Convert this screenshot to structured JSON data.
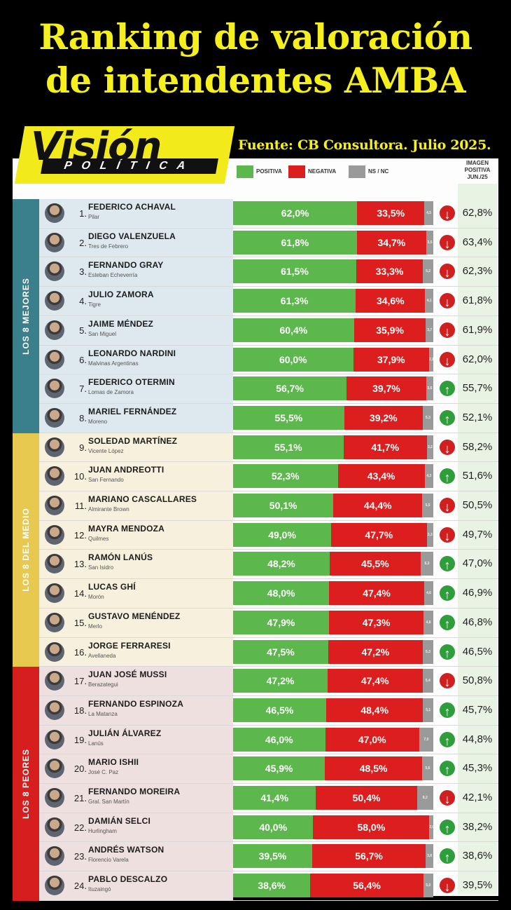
{
  "header": {
    "title_line1": "Ranking de valoración",
    "title_line2": "de intendentes AMBA",
    "logo_word": "Visión",
    "logo_sub": "POLÍTICA",
    "source": "Fuente: CB Consultora. Julio 2025."
  },
  "colors": {
    "positive": "#5cb84c",
    "negative": "#dc1e1e",
    "ns_nc": "#9a9a9a",
    "title_yellow": "#f5ef1d",
    "group_best": "#3a7f8c",
    "group_middle": "#e8c94f",
    "group_worst": "#d71e1e"
  },
  "chart_data": {
    "type": "bar",
    "legend": [
      "POSITIVA",
      "NEGATIVA",
      "NS / NC"
    ],
    "image_header": "IMAGEN POSITIVA JUN./25",
    "groups": [
      {
        "label": "LOS 8 MEJORES",
        "from": 1,
        "to": 8
      },
      {
        "label": "LOS 8 DEL MEDIO",
        "from": 9,
        "to": 16
      },
      {
        "label": "LOS 8 PEORES",
        "from": 17,
        "to": 24
      }
    ],
    "rows": [
      {
        "rank": "1.",
        "name": "FEDERICO ACHAVAL",
        "municipality": "Pilar",
        "positive": 62.0,
        "positive_label": "62,0%",
        "negative": 33.5,
        "negative_label": "33,5%",
        "ns_nc": 4.5,
        "ns_label": "4,5",
        "trend": "down",
        "image_jun": "62,8%"
      },
      {
        "rank": "2.",
        "name": "DIEGO VALENZUELA",
        "municipality": "Tres de Febrero",
        "positive": 61.8,
        "positive_label": "61,8%",
        "negative": 34.7,
        "negative_label": "34,7%",
        "ns_nc": 3.5,
        "ns_label": "3,5",
        "trend": "down",
        "image_jun": "63,4%"
      },
      {
        "rank": "3.",
        "name": "FERNANDO GRAY",
        "municipality": "Esteban Echeverría",
        "positive": 61.5,
        "positive_label": "61,5%",
        "negative": 33.3,
        "negative_label": "33,3%",
        "ns_nc": 5.2,
        "ns_label": "5,2",
        "trend": "down",
        "image_jun": "62,3%"
      },
      {
        "rank": "4.",
        "name": "JULIO ZAMORA",
        "municipality": "Tigre",
        "positive": 61.3,
        "positive_label": "61,3%",
        "negative": 34.6,
        "negative_label": "34,6%",
        "ns_nc": 4.1,
        "ns_label": "4,1",
        "trend": "down",
        "image_jun": "61,8%"
      },
      {
        "rank": "5.",
        "name": "JAIME MÉNDEZ",
        "municipality": "San Miguel",
        "positive": 60.4,
        "positive_label": "60,4%",
        "negative": 35.9,
        "negative_label": "35,9%",
        "ns_nc": 3.7,
        "ns_label": "3,7",
        "trend": "down",
        "image_jun": "61,9%"
      },
      {
        "rank": "6.",
        "name": "LEONARDO NARDINI",
        "municipality": "Malvinas Argentinas",
        "positive": 60.0,
        "positive_label": "60,0%",
        "negative": 37.9,
        "negative_label": "37,9%",
        "ns_nc": 2.1,
        "ns_label": "2,1",
        "trend": "down",
        "image_jun": "62,0%"
      },
      {
        "rank": "7.",
        "name": "FEDERICO OTERMIN",
        "municipality": "Lomas de Zamora",
        "positive": 56.7,
        "positive_label": "56,7%",
        "negative": 39.7,
        "negative_label": "39,7%",
        "ns_nc": 3.6,
        "ns_label": "3,6",
        "trend": "up",
        "image_jun": "55,7%"
      },
      {
        "rank": "8.",
        "name": "MARIEL FERNÁNDEZ",
        "municipality": "Moreno",
        "positive": 55.5,
        "positive_label": "55,5%",
        "negative": 39.2,
        "negative_label": "39,2%",
        "ns_nc": 5.3,
        "ns_label": "5,3",
        "trend": "up",
        "image_jun": "52,1%"
      },
      {
        "rank": "9.",
        "name": "SOLEDAD MARTÍNEZ",
        "municipality": "Vicente López",
        "positive": 55.1,
        "positive_label": "55,1%",
        "negative": 41.7,
        "negative_label": "41,7%",
        "ns_nc": 3.2,
        "ns_label": "3,2",
        "trend": "down",
        "image_jun": "58,2%"
      },
      {
        "rank": "10.",
        "name": "JUAN ANDREOTTI",
        "municipality": "San Fernando",
        "positive": 52.3,
        "positive_label": "52,3%",
        "negative": 43.4,
        "negative_label": "43,4%",
        "ns_nc": 4.3,
        "ns_label": "4,3",
        "trend": "up",
        "image_jun": "51,6%"
      },
      {
        "rank": "11.",
        "name": "MARIANO CASCALLARES",
        "municipality": "Almirante Brown",
        "positive": 50.1,
        "positive_label": "50,1%",
        "negative": 44.4,
        "negative_label": "44,4%",
        "ns_nc": 5.5,
        "ns_label": "5,5",
        "trend": "down",
        "image_jun": "50,5%"
      },
      {
        "rank": "12.",
        "name": "MAYRA MENDOZA",
        "municipality": "Quilmes",
        "positive": 49.0,
        "positive_label": "49,0%",
        "negative": 47.7,
        "negative_label": "47,7%",
        "ns_nc": 3.3,
        "ns_label": "3,3",
        "trend": "down",
        "image_jun": "49,7%"
      },
      {
        "rank": "13.",
        "name": "RAMÓN LANÚS",
        "municipality": "San Isidro",
        "positive": 48.2,
        "positive_label": "48,2%",
        "negative": 45.5,
        "negative_label": "45,5%",
        "ns_nc": 6.3,
        "ns_label": "6,3",
        "trend": "up",
        "image_jun": "47,0%"
      },
      {
        "rank": "14.",
        "name": "LUCAS GHÍ",
        "municipality": "Morón",
        "positive": 48.0,
        "positive_label": "48,0%",
        "negative": 47.4,
        "negative_label": "47,4%",
        "ns_nc": 4.6,
        "ns_label": "4,6",
        "trend": "up",
        "image_jun": "46,9%"
      },
      {
        "rank": "15.",
        "name": "GUSTAVO MENÉNDEZ",
        "municipality": "Merlo",
        "positive": 47.9,
        "positive_label": "47,9%",
        "negative": 47.3,
        "negative_label": "47,3%",
        "ns_nc": 4.8,
        "ns_label": "4,8",
        "trend": "up",
        "image_jun": "46,8%"
      },
      {
        "rank": "16.",
        "name": "JORGE FERRARESI",
        "municipality": "Avellaneda",
        "positive": 47.5,
        "positive_label": "47,5%",
        "negative": 47.2,
        "negative_label": "47,2%",
        "ns_nc": 5.3,
        "ns_label": "5,3",
        "trend": "up",
        "image_jun": "46,5%"
      },
      {
        "rank": "17.",
        "name": "JUAN JOSÉ MUSSI",
        "municipality": "Berazategui",
        "positive": 47.2,
        "positive_label": "47,2%",
        "negative": 47.4,
        "negative_label": "47,4%",
        "ns_nc": 5.4,
        "ns_label": "5,4",
        "trend": "down",
        "image_jun": "50,8%"
      },
      {
        "rank": "18.",
        "name": "FERNANDO ESPINOZA",
        "municipality": "La Matanza",
        "positive": 46.5,
        "positive_label": "46,5%",
        "negative": 48.4,
        "negative_label": "48,4%",
        "ns_nc": 5.1,
        "ns_label": "5,1",
        "trend": "up",
        "image_jun": "45,7%"
      },
      {
        "rank": "19.",
        "name": "JULIÁN ÁLVAREZ",
        "municipality": "Lanús",
        "positive": 46.0,
        "positive_label": "46,0%",
        "negative": 47.0,
        "negative_label": "47,0%",
        "ns_nc": 7.0,
        "ns_label": "7,0",
        "trend": "up",
        "image_jun": "44,8%"
      },
      {
        "rank": "20.",
        "name": "MARIO ISHII",
        "municipality": "José C. Paz",
        "positive": 45.9,
        "positive_label": "45,9%",
        "negative": 48.5,
        "negative_label": "48,5%",
        "ns_nc": 5.6,
        "ns_label": "5,6",
        "trend": "up",
        "image_jun": "45,3%"
      },
      {
        "rank": "21.",
        "name": "FERNANDO MOREIRA",
        "municipality": "Gral. San Martín",
        "positive": 41.4,
        "positive_label": "41,4%",
        "negative": 50.4,
        "negative_label": "50,4%",
        "ns_nc": 8.2,
        "ns_label": "8,2",
        "trend": "down",
        "image_jun": "42,1%"
      },
      {
        "rank": "22.",
        "name": "DAMIÁN SELCI",
        "municipality": "Hurlingham",
        "positive": 40.0,
        "positive_label": "40,0%",
        "negative": 58.0,
        "negative_label": "58,0%",
        "ns_nc": 2.0,
        "ns_label": "2,0",
        "trend": "up",
        "image_jun": "38,2%"
      },
      {
        "rank": "23.",
        "name": "ANDRÉS WATSON",
        "municipality": "Florencio Varela",
        "positive": 39.5,
        "positive_label": "39,5%",
        "negative": 56.7,
        "negative_label": "56,7%",
        "ns_nc": 3.8,
        "ns_label": "3,8",
        "trend": "up",
        "image_jun": "38,6%"
      },
      {
        "rank": "24.",
        "name": "PABLO DESCALZO",
        "municipality": "Ituzaingó",
        "positive": 38.6,
        "positive_label": "38,6%",
        "negative": 56.4,
        "negative_label": "56,4%",
        "ns_nc": 5.0,
        "ns_label": "5,0",
        "trend": "down",
        "image_jun": "39,5%"
      }
    ]
  }
}
